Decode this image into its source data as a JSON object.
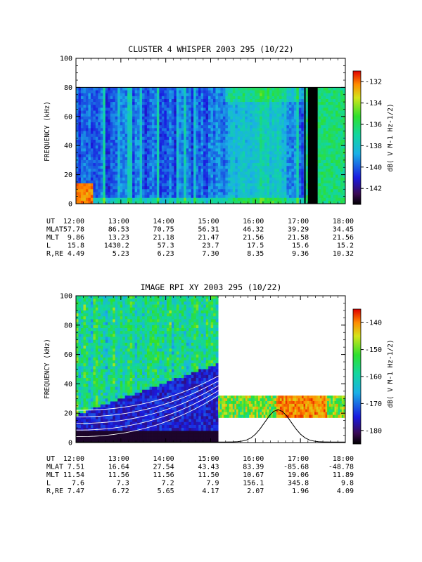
{
  "chart_data": [
    {
      "type": "heatmap",
      "title": "CLUSTER 4 WHISPER 2003 295 (10/22)",
      "ylabel": "FREQUENCY (kHz)",
      "ylim": [
        0,
        100
      ],
      "yticks": [
        "0",
        "20",
        "40",
        "60",
        "80",
        "100"
      ],
      "xlim_ut": [
        "12:00",
        "18:00"
      ],
      "colorbar": {
        "label": "dB( V M-1 Hz-1/2)",
        "range": [
          -143.5,
          -131
        ],
        "ticks": [
          "-132",
          "-134",
          "-136",
          "-138",
          "-140",
          "-142"
        ]
      },
      "upper_frequency_limit_khz": 80,
      "gaps_ut": [
        [
          "17:05",
          "17:07"
        ],
        [
          "17:10",
          "17:23"
        ]
      ],
      "ephemeris": {
        "labels": [
          "UT",
          "MLAT",
          "MLT",
          "L",
          "R,RE"
        ],
        "rows": [
          [
            "12:00",
            "13:00",
            "14:00",
            "15:00",
            "16:00",
            "17:00",
            "18:00"
          ],
          [
            "57.78",
            "86.53",
            "70.75",
            "56.31",
            "46.32",
            "39.29",
            "34.45"
          ],
          [
            "9.86",
            "13.23",
            "21.18",
            "21.47",
            "21.56",
            "21.58",
            "21.56"
          ],
          [
            "15.8",
            "1430.2",
            "57.3",
            "23.7",
            "17.5",
            "15.6",
            "15.2"
          ],
          [
            "4.49",
            "5.23",
            "6.23",
            "7.30",
            "8.35",
            "9.36",
            "10.32"
          ]
        ]
      }
    },
    {
      "type": "heatmap",
      "title": "IMAGE RPI XY 2003 295 (10/22)",
      "ylabel": "FREQUENCY (kHz)",
      "ylim": [
        0,
        100
      ],
      "yticks": [
        "0",
        "20",
        "40",
        "60",
        "80",
        "100"
      ],
      "xlim_ut": [
        "12:00",
        "18:00"
      ],
      "colorbar": {
        "label": "dB( V M-1 Hz-1/2)",
        "range": [
          -185,
          -135
        ],
        "ticks": [
          "-140",
          "-150",
          "-160",
          "-170",
          "-180"
        ]
      },
      "coverage": [
        {
          "start_ut": "12:00",
          "end_ut": "15:10",
          "f_range_khz": [
            0,
            100
          ]
        },
        {
          "start_ut": "15:10",
          "end_ut": "18:00",
          "f_range_khz": [
            17,
            32
          ]
        }
      ],
      "ephemeris": {
        "labels": [
          "UT",
          "MLAT",
          "MLT",
          "L",
          "R,RE"
        ],
        "rows": [
          [
            "12:00",
            "13:00",
            "14:00",
            "15:00",
            "16:00",
            "17:00",
            "18:00"
          ],
          [
            "7.51",
            "16.64",
            "27.54",
            "43.43",
            "83.39",
            "-85.68",
            "-48.78"
          ],
          [
            "11.54",
            "11.56",
            "11.56",
            "11.50",
            "10.67",
            "19.06",
            "11.89"
          ],
          [
            "7.6",
            "7.3",
            "7.2",
            "7.9",
            "156.1",
            "345.8",
            "9.8"
          ],
          [
            "7.47",
            "6.72",
            "5.65",
            "4.17",
            "2.07",
            "1.96",
            "4.09"
          ]
        ]
      }
    }
  ]
}
